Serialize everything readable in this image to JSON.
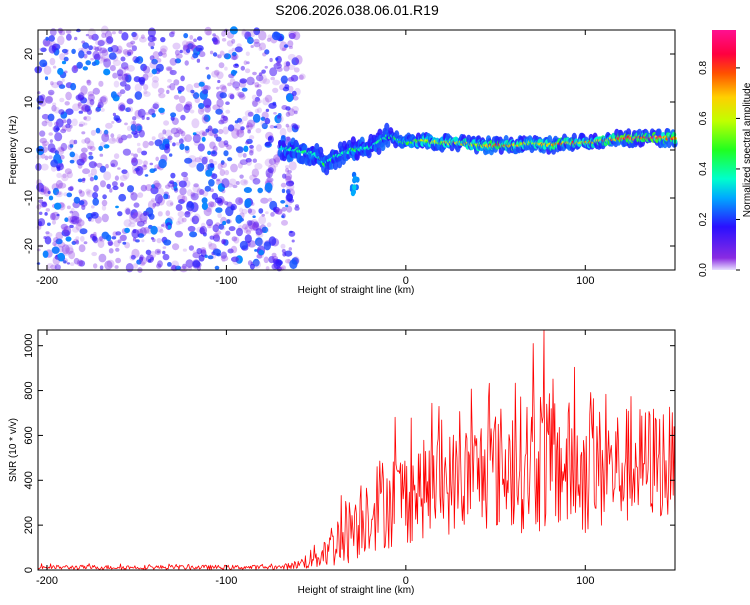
{
  "title": "S206.2026.038.06.01.R19",
  "chart_data": [
    {
      "type": "heatmap",
      "name": "spectrogram",
      "xlabel": "Height of straight line (km)",
      "ylabel": "Frequency (Hz)",
      "xlim": [
        -205,
        150
      ],
      "ylim": [
        -25,
        25
      ],
      "xticks": [
        -200,
        -100,
        0,
        100
      ],
      "yticks": [
        -20,
        -10,
        0,
        10,
        20
      ],
      "colorbar": {
        "label": "Normalized spectral amplitude",
        "range": [
          0.0,
          0.95
        ],
        "ticks": [
          0.0,
          0.2,
          0.4,
          0.6,
          0.8
        ],
        "colormap": "rainbow (purple → blue → cyan → green → yellow → orange → red → magenta)"
      },
      "features": {
        "noise_region_x": [
          -205,
          -60
        ],
        "noise_amplitude_range": [
          0.0,
          0.15
        ],
        "signal_trace": {
          "x": [
            -70,
            -60,
            -50,
            -45,
            -40,
            -30,
            -20,
            -10,
            0,
            10,
            20,
            30,
            40,
            50,
            60,
            70,
            80,
            90,
            100,
            110,
            120,
            130,
            140,
            150
          ],
          "frequency": [
            0.5,
            0,
            -1,
            -3,
            -1.5,
            0,
            0.5,
            3,
            1.5,
            2,
            1.5,
            1.5,
            1,
            1,
            1,
            1.5,
            1,
            1.5,
            1.5,
            2,
            2.5,
            2.5,
            2.5,
            2.5
          ],
          "amplitude": [
            0.35,
            0.4,
            0.4,
            0.45,
            0.4,
            0.45,
            0.35,
            0.4,
            0.5,
            0.65,
            0.6,
            0.7,
            0.65,
            0.85,
            0.7,
            0.6,
            0.75,
            0.8,
            0.7,
            0.75,
            0.95,
            0.9,
            0.85,
            0.8
          ]
        }
      }
    },
    {
      "type": "line",
      "name": "snr",
      "xlabel": "Height of straight line (km)",
      "ylabel": "SNR (10 * v/v)",
      "xlim": [
        -205,
        150
      ],
      "ylim": [
        0,
        1070
      ],
      "xticks": [
        -200,
        -100,
        0,
        100
      ],
      "yticks": [
        0,
        200,
        400,
        600,
        800,
        1000
      ],
      "color": "#ff0000",
      "envelope": {
        "x": [
          -205,
          -70,
          -60,
          -50,
          -40,
          -30,
          -20,
          -10,
          0,
          10,
          20,
          30,
          40,
          50,
          60,
          70,
          75,
          80,
          90,
          100,
          110,
          120,
          130,
          140,
          145,
          150
        ],
        "mean": [
          12,
          12,
          25,
          60,
          120,
          200,
          280,
          310,
          330,
          360,
          380,
          400,
          430,
          450,
          470,
          480,
          500,
          470,
          460,
          440,
          450,
          460,
          470,
          490,
          480,
          450
        ],
        "amp": [
          10,
          10,
          20,
          60,
          110,
          170,
          200,
          220,
          220,
          220,
          230,
          240,
          260,
          280,
          300,
          320,
          340,
          320,
          300,
          290,
          280,
          270,
          260,
          260,
          280,
          250
        ]
      },
      "peak": {
        "x": 77,
        "y": 1070
      }
    }
  ]
}
